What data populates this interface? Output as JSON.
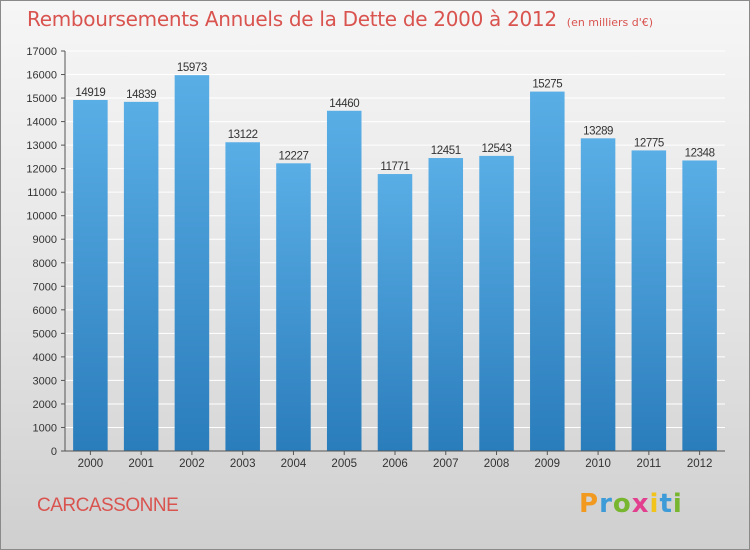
{
  "header": {
    "title": "Remboursements Annuels de la Dette de 2000 à 2012",
    "subtitle": "(en milliers d'€)"
  },
  "footer": {
    "city": "CARCASSONNE",
    "brand": "Proxiti"
  },
  "colors": {
    "title": "#d9534f",
    "bar_top": "#5aaee6",
    "bar_bottom": "#2a7dbb",
    "grid": "#ffffff",
    "axis": "#555555"
  },
  "chart_data": {
    "type": "bar",
    "title": "Remboursements Annuels de la Dette de 2000 à 2012",
    "subtitle": "(en milliers d'€)",
    "xlabel": "",
    "ylabel": "",
    "categories": [
      "2000",
      "2001",
      "2002",
      "2003",
      "2004",
      "2005",
      "2006",
      "2007",
      "2008",
      "2009",
      "2010",
      "2011",
      "2012"
    ],
    "values": [
      14919,
      14839,
      15973,
      13122,
      12227,
      14460,
      11771,
      12451,
      12543,
      15275,
      13289,
      12775,
      12348
    ],
    "ylim": [
      0,
      17000
    ],
    "yticks": [
      0,
      1000,
      2000,
      3000,
      4000,
      5000,
      6000,
      7000,
      8000,
      9000,
      10000,
      11000,
      12000,
      13000,
      14000,
      15000,
      16000,
      17000
    ],
    "grid": true,
    "data_labels": true
  }
}
